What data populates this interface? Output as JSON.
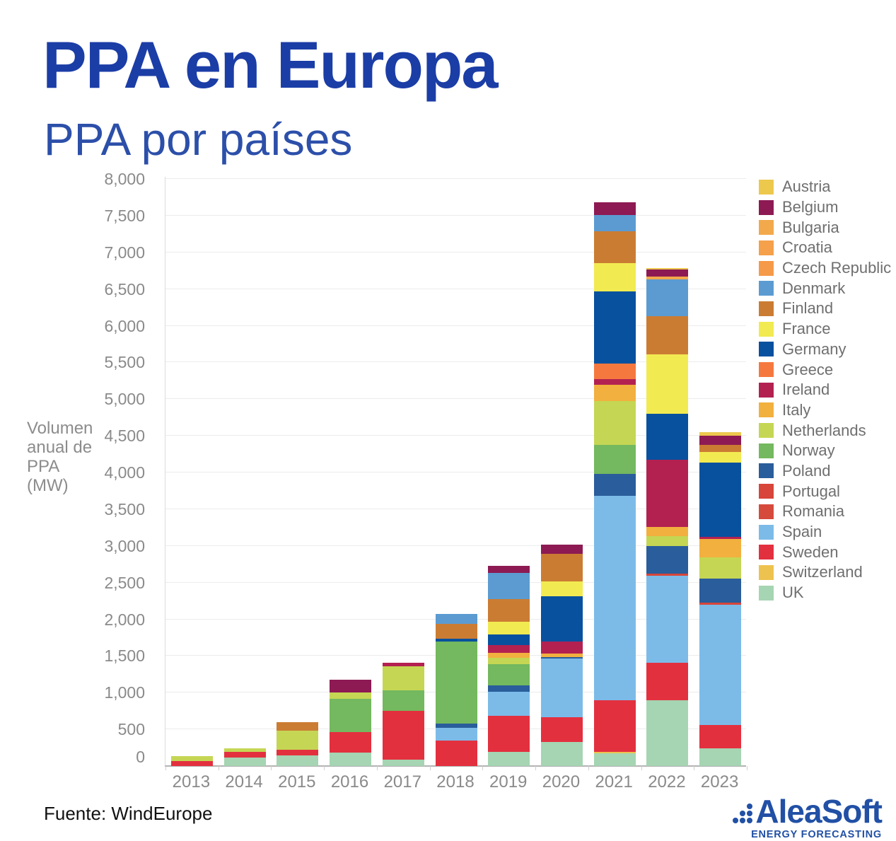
{
  "page": {
    "title": "PPA en Europa",
    "subtitle": "PPA por países",
    "source": "Fuente: WindEurope",
    "logo": {
      "name": "AleaSoft",
      "tagline": "ENERGY FORECASTING"
    }
  },
  "chart_data": {
    "type": "bar",
    "stacked": true,
    "title": "PPA por países",
    "ylabel": "Volumen anual de PPA (MW)",
    "ylabel_lines": [
      "Volumen",
      "anual de",
      "PPA",
      "(MW)"
    ],
    "categories": [
      "2013",
      "2014",
      "2015",
      "2016",
      "2017",
      "2018",
      "2019",
      "2020",
      "2021",
      "2022",
      "2023"
    ],
    "y_axis": {
      "min": 0,
      "max": 8000,
      "tick_step": 500,
      "render_max": 8030,
      "tick_labels": [
        "0",
        "500",
        "1,000",
        "1,500",
        "2,000",
        "2,500",
        "3,000",
        "3,500",
        "4,000",
        "4,500",
        "5,000",
        "5,500",
        "6,000",
        "6,500",
        "7,000",
        "7,500",
        "8,000"
      ],
      "grid": true
    },
    "legend_position": "right",
    "units": "MW",
    "stack_order_bottom_to_top": [
      "UK",
      "Switzerland",
      "Sweden",
      "Spain",
      "Romania",
      "Portugal",
      "Poland",
      "Norway",
      "Netherlands",
      "Italy",
      "Ireland",
      "Greece",
      "Germany",
      "France",
      "Finland",
      "Denmark",
      "Czech Republic",
      "Croatia",
      "Bulgaria",
      "Belgium",
      "Austria"
    ],
    "series": [
      {
        "name": "Austria",
        "color": "#ecc84d",
        "values": [
          0,
          0,
          0,
          0,
          0,
          0,
          0,
          0,
          0,
          20,
          50
        ]
      },
      {
        "name": "Belgium",
        "color": "#8d1a53",
        "values": [
          0,
          0,
          0,
          175,
          0,
          0,
          95,
          120,
          175,
          95,
          120
        ]
      },
      {
        "name": "Bulgaria",
        "color": "#f2a94c",
        "values": [
          0,
          0,
          0,
          0,
          0,
          0,
          0,
          0,
          0,
          40,
          0
        ]
      },
      {
        "name": "Croatia",
        "color": "#f5a04b",
        "values": [
          0,
          0,
          0,
          0,
          0,
          0,
          0,
          0,
          0,
          0,
          0
        ]
      },
      {
        "name": "Czech Republic",
        "color": "#f59a49",
        "values": [
          0,
          0,
          0,
          0,
          0,
          0,
          0,
          0,
          0,
          0,
          0
        ]
      },
      {
        "name": "Denmark",
        "color": "#5b9bd1",
        "values": [
          0,
          0,
          0,
          0,
          0,
          130,
          355,
          0,
          220,
          500,
          0
        ]
      },
      {
        "name": "Finland",
        "color": "#cb7c33",
        "values": [
          0,
          0,
          120,
          0,
          0,
          200,
          310,
          375,
          440,
          520,
          95
        ]
      },
      {
        "name": "France",
        "color": "#f2ea51",
        "values": [
          0,
          0,
          0,
          0,
          0,
          0,
          175,
          210,
          380,
          810,
          145
        ]
      },
      {
        "name": "Germany",
        "color": "#07519e",
        "values": [
          0,
          0,
          0,
          0,
          0,
          40,
          140,
          610,
          985,
          625,
          1020
        ]
      },
      {
        "name": "Greece",
        "color": "#f5793f",
        "values": [
          0,
          0,
          0,
          0,
          0,
          0,
          0,
          0,
          210,
          0,
          0
        ]
      },
      {
        "name": "Ireland",
        "color": "#b32151",
        "values": [
          0,
          0,
          0,
          0,
          50,
          0,
          110,
          165,
          75,
          920,
          25
        ]
      },
      {
        "name": "Italy",
        "color": "#f2b03e",
        "values": [
          0,
          0,
          0,
          0,
          0,
          0,
          65,
          50,
          230,
          125,
          250
        ]
      },
      {
        "name": "Netherlands",
        "color": "#c5d654",
        "values": [
          65,
          50,
          255,
          85,
          330,
          0,
          90,
          0,
          595,
          130,
          295
        ]
      },
      {
        "name": "Norway",
        "color": "#74b85f",
        "values": [
          0,
          0,
          0,
          450,
          275,
          1120,
          290,
          0,
          390,
          0,
          0
        ]
      },
      {
        "name": "Poland",
        "color": "#2a5d9b",
        "values": [
          0,
          0,
          0,
          0,
          0,
          55,
          85,
          20,
          300,
          375,
          320
        ]
      },
      {
        "name": "Portugal",
        "color": "#d8453a",
        "values": [
          0,
          0,
          0,
          0,
          0,
          0,
          0,
          0,
          0,
          30,
          30
        ]
      },
      {
        "name": "Romania",
        "color": "#d64a3c",
        "values": [
          0,
          0,
          0,
          0,
          0,
          0,
          0,
          0,
          0,
          0,
          0
        ]
      },
      {
        "name": "Spain",
        "color": "#7cbbe8",
        "values": [
          0,
          0,
          0,
          0,
          0,
          175,
          325,
          795,
          2785,
          1190,
          1640
        ]
      },
      {
        "name": "Sweden",
        "color": "#e3303f",
        "values": [
          70,
          75,
          80,
          280,
          665,
          350,
          495,
          345,
          705,
          505,
          320
        ]
      },
      {
        "name": "Switzerland",
        "color": "#eec24f",
        "values": [
          0,
          0,
          0,
          0,
          0,
          0,
          0,
          0,
          20,
          0,
          0
        ]
      },
      {
        "name": "UK",
        "color": "#a5d5b2",
        "values": [
          0,
          115,
          145,
          185,
          90,
          0,
          190,
          325,
          175,
          900,
          240
        ]
      }
    ],
    "totals": [
      135,
      240,
      600,
      1175,
      1410,
      2070,
      2725,
      3015,
      7685,
      6785,
      4550
    ]
  }
}
